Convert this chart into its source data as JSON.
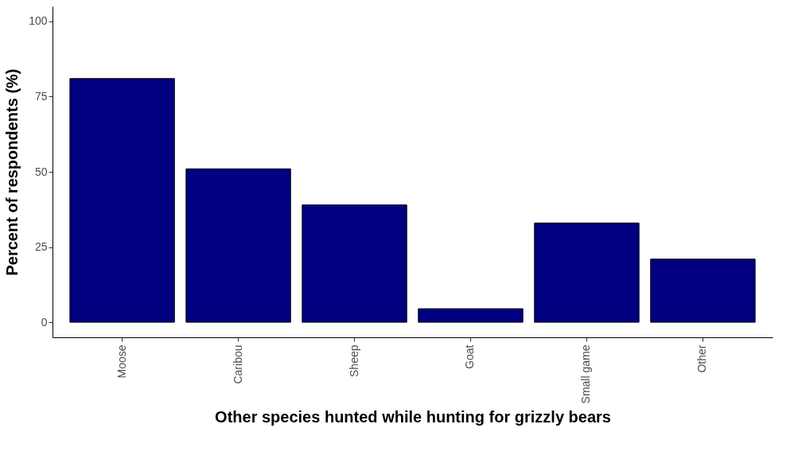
{
  "chart_data": {
    "type": "bar",
    "xlabel": "Other species hunted while hunting for grizzly bears",
    "ylabel": "Percent of respondents (%)",
    "categories": [
      "Moose",
      "Caribou",
      "Sheep",
      "Goat",
      "Small game",
      "Other"
    ],
    "values": [
      81,
      51,
      39,
      4.5,
      33,
      21
    ],
    "color": "#000080",
    "ylim": [
      -5,
      105
    ],
    "yticks": [
      0,
      25,
      50,
      75,
      100
    ],
    "grid": false,
    "legend": false
  }
}
